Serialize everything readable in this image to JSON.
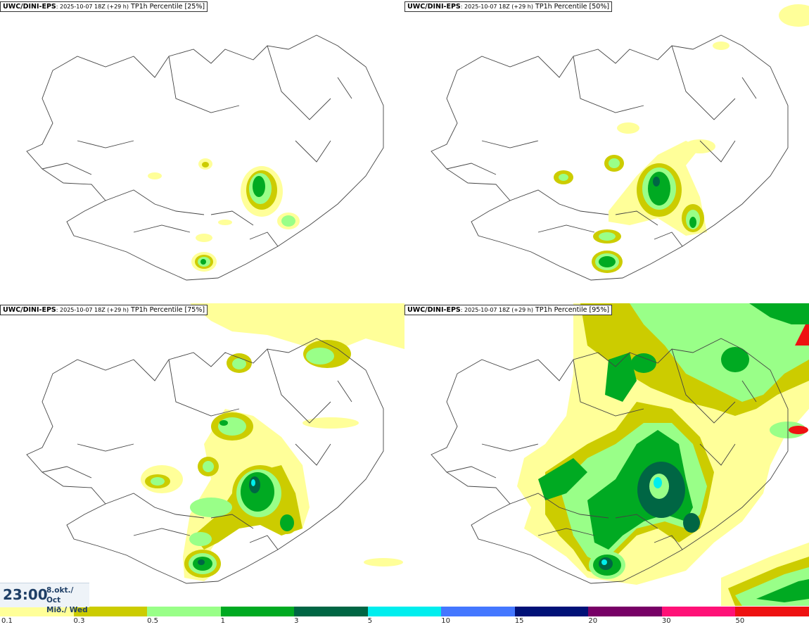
{
  "panels": [
    {
      "model": "UWC/DINI-EPS",
      "run": ": 2025-10-07 18Z (+29 h)",
      "product": "TP1h Percentile [25%]"
    },
    {
      "model": "UWC/DINI-EPS",
      "run": ": 2025-10-07 18Z (+29 h)",
      "product": "TP1h Percentile [50%]"
    },
    {
      "model": "UWC/DINI-EPS",
      "run": ": 2025-10-07 18Z (+29 h)",
      "product": "TP1h Percentile [75%]"
    },
    {
      "model": "UWC/DINI-EPS",
      "run": ": 2025-10-07 18Z (+29 h)",
      "product": "TP1h Percentile [95%]"
    }
  ],
  "valid_time": {
    "time": "23:00",
    "date_line1": "8.okt./ Oct",
    "date_line2": "Mið./ Wed"
  },
  "legend": {
    "colors": [
      "#ffff99",
      "#cccc00",
      "#99ff88",
      "#00aa22",
      "#006644",
      "#00eeee",
      "#4477ff",
      "#001177",
      "#770066",
      "#ff1177",
      "#ee1111"
    ],
    "labels": [
      "0.1",
      "0.3",
      "0.5",
      "1",
      "3",
      "5",
      "10",
      "15",
      "20",
      "30",
      "50"
    ]
  }
}
